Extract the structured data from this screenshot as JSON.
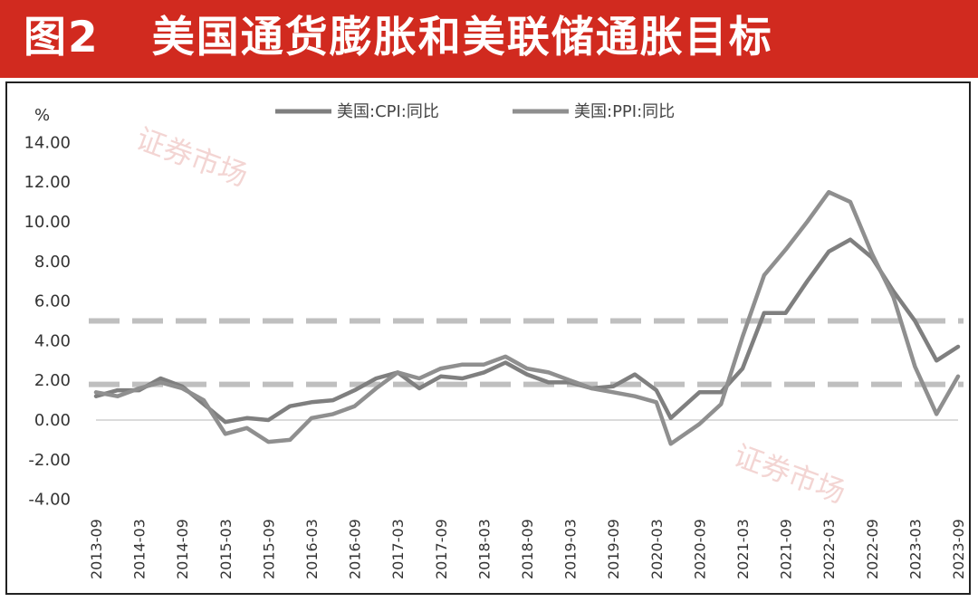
{
  "header": {
    "figure_label": "图2",
    "title": "美国通货膨胀和美联储通胀目标"
  },
  "watermark": {
    "text": "证券市场"
  },
  "colors": {
    "banner": "#d12a1f",
    "cpi": "#7f7f7f",
    "ppi": "#8f8f8f",
    "ref_line": "#bfbfbf"
  },
  "chart_data": {
    "type": "line",
    "ylabel": "%",
    "ylim": [
      -4,
      14
    ],
    "yticks": [
      "14.00",
      "12.00",
      "10.00",
      "8.00",
      "6.00",
      "4.00",
      "2.00",
      "0.00",
      "-2.00",
      "-4.00"
    ],
    "xticks": [
      "2013-09",
      "2014-03",
      "2014-09",
      "2015-03",
      "2015-09",
      "2016-03",
      "2016-09",
      "2017-03",
      "2017-09",
      "2018-03",
      "2018-09",
      "2019-03",
      "2019-09",
      "2020-03",
      "2020-09",
      "2021-03",
      "2021-09",
      "2022-03",
      "2022-09",
      "2023-03",
      "2023-09"
    ],
    "legend": [
      "美国:CPI:同比",
      "美国:PPI:同比"
    ],
    "legend_position": "top",
    "reference_lines": [
      {
        "y": 5.0
      },
      {
        "y": 1.8
      }
    ],
    "series": [
      {
        "name": "美国:CPI:同比",
        "x": [
          "2013-09",
          "2013-12",
          "2014-03",
          "2014-06",
          "2014-09",
          "2014-12",
          "2015-03",
          "2015-06",
          "2015-09",
          "2015-12",
          "2016-03",
          "2016-06",
          "2016-09",
          "2016-12",
          "2017-03",
          "2017-06",
          "2017-09",
          "2017-12",
          "2018-03",
          "2018-06",
          "2018-09",
          "2018-12",
          "2019-03",
          "2019-06",
          "2019-09",
          "2019-12",
          "2020-03",
          "2020-05",
          "2020-09",
          "2020-12",
          "2021-03",
          "2021-06",
          "2021-09",
          "2021-12",
          "2022-03",
          "2022-06",
          "2022-09",
          "2022-12",
          "2023-03",
          "2023-06",
          "2023-09"
        ],
        "values": [
          1.2,
          1.5,
          1.5,
          2.1,
          1.7,
          0.8,
          -0.1,
          0.1,
          0.0,
          0.7,
          0.9,
          1.0,
          1.5,
          2.1,
          2.4,
          1.6,
          2.2,
          2.1,
          2.4,
          2.9,
          2.3,
          1.9,
          1.9,
          1.6,
          1.7,
          2.3,
          1.5,
          0.1,
          1.4,
          1.4,
          2.6,
          5.4,
          5.4,
          7.0,
          8.5,
          9.1,
          8.2,
          6.5,
          5.0,
          3.0,
          3.7
        ]
      },
      {
        "name": "美国:PPI:同比",
        "x": [
          "2013-09",
          "2013-12",
          "2014-03",
          "2014-06",
          "2014-09",
          "2014-12",
          "2015-03",
          "2015-06",
          "2015-09",
          "2015-12",
          "2016-03",
          "2016-06",
          "2016-09",
          "2016-12",
          "2017-03",
          "2017-06",
          "2017-09",
          "2017-12",
          "2018-03",
          "2018-06",
          "2018-09",
          "2018-12",
          "2019-03",
          "2019-06",
          "2019-09",
          "2019-12",
          "2020-03",
          "2020-05",
          "2020-09",
          "2020-12",
          "2021-03",
          "2021-06",
          "2021-09",
          "2021-12",
          "2022-03",
          "2022-06",
          "2022-09",
          "2022-12",
          "2023-03",
          "2023-06",
          "2023-09"
        ],
        "values": [
          1.4,
          1.2,
          1.6,
          1.9,
          1.6,
          1.0,
          -0.7,
          -0.4,
          -1.1,
          -1.0,
          0.1,
          0.3,
          0.7,
          1.6,
          2.4,
          2.1,
          2.6,
          2.8,
          2.8,
          3.2,
          2.6,
          2.4,
          2.0,
          1.6,
          1.4,
          1.2,
          0.9,
          -1.2,
          -0.2,
          0.8,
          4.2,
          7.3,
          8.6,
          10.0,
          11.5,
          11.0,
          8.4,
          6.2,
          2.7,
          0.3,
          2.2
        ]
      }
    ]
  }
}
